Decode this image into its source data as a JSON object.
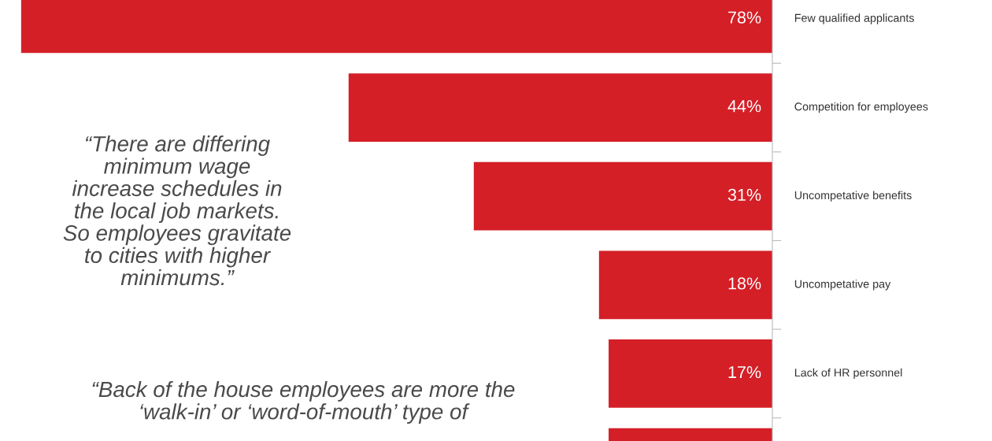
{
  "chart_data": {
    "type": "bar",
    "orientation": "horizontal",
    "categories": [
      "Few qualified applicants",
      "Competition for employees",
      "Uncompetative benefits",
      "Uncompetative pay",
      "Lack of HR personnel",
      null
    ],
    "values": [
      78,
      44,
      31,
      18,
      17,
      17
    ],
    "color": "#d41f27",
    "value_labels": [
      "78%",
      "44%",
      "31%",
      "18%",
      "17%",
      null
    ],
    "tick_labels": "y",
    "grid": false,
    "annotations": [
      "“There are differing\nminimum wage\nincrease schedules in\nthe local job markets.\nSo employees gravitate\nto cities with higher\nminimums.”",
      "“Back of the house employees are more the\n‘walk-in’ or ‘word-of-mouth’ type of"
    ]
  }
}
